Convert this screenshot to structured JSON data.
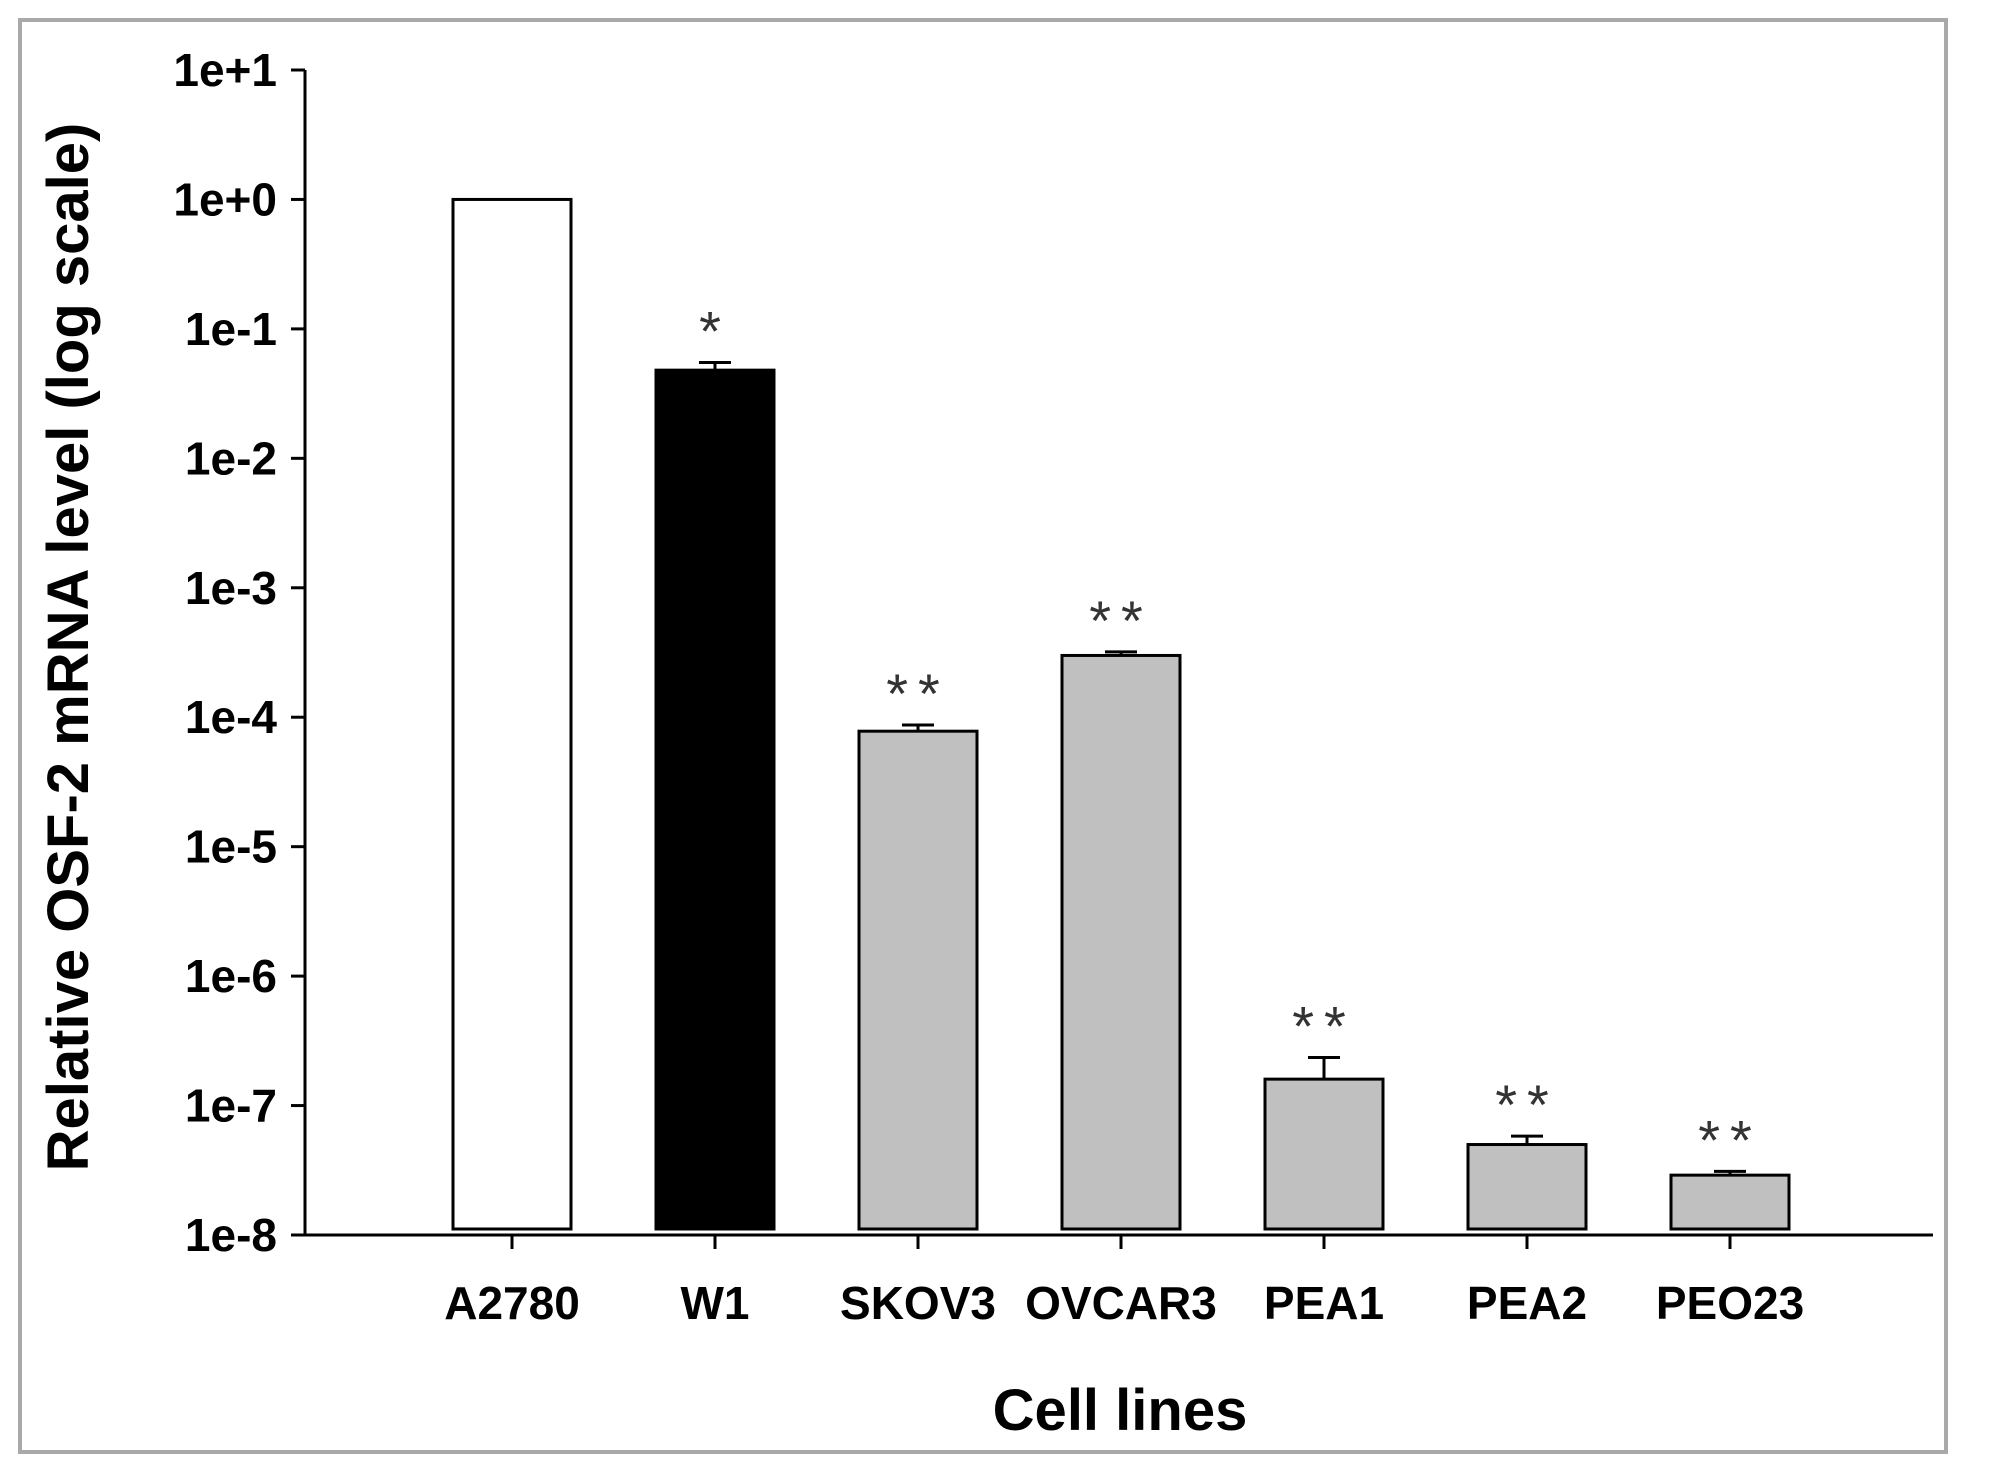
{
  "chart_data": {
    "type": "bar",
    "title": "",
    "xlabel": "Cell lines",
    "ylabel": "Relative OSF-2 mRNA level (log scale)",
    "yscale": "log",
    "ylim": [
      1e-08,
      10
    ],
    "yticks": [
      {
        "value": 1e-08,
        "label": "1e-8"
      },
      {
        "value": 1e-07,
        "label": "1e-7"
      },
      {
        "value": 1e-06,
        "label": "1e-6"
      },
      {
        "value": 1e-05,
        "label": "1e-5"
      },
      {
        "value": 0.0001,
        "label": "1e-4"
      },
      {
        "value": 0.001,
        "label": "1e-3"
      },
      {
        "value": 0.01,
        "label": "1e-2"
      },
      {
        "value": 0.1,
        "label": "1e-1"
      },
      {
        "value": 1,
        "label": "1e+0"
      },
      {
        "value": 10,
        "label": "1e+1"
      }
    ],
    "categories": [
      "A2780",
      "W1",
      "SKOV3",
      "OVCAR3",
      "PEA1",
      "PEA2",
      "PEO23"
    ],
    "values": [
      1.0,
      0.048,
      7.8e-05,
      0.0003,
      1.6e-07,
      5e-08,
      2.9e-08
    ],
    "error_upper": [
      null,
      0.055,
      8.7e-05,
      0.00032,
      2.35e-07,
      5.8e-08,
      3.1e-08
    ],
    "significance": [
      "",
      "*",
      "**",
      "**",
      "**",
      "**",
      "**"
    ],
    "bar_colors": [
      "#ffffff",
      "#000000",
      "#c0c0c0",
      "#c0c0c0",
      "#c0c0c0",
      "#c0c0c0",
      "#c0c0c0"
    ]
  }
}
